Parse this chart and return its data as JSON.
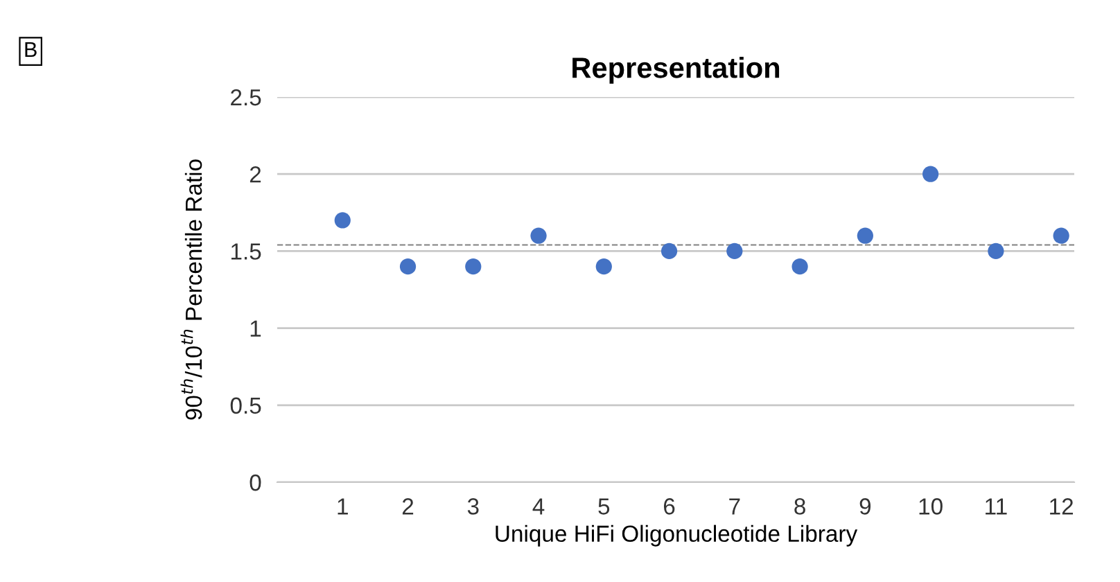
{
  "chart_data": {
    "type": "scatter",
    "title": "Representation",
    "xlabel": "Unique HiFi Oligonucleotide Library",
    "ylabel": "90$^{th}$/10$^{th}$ Percentile Ratio",
    "annotations": [
      "B"
    ],
    "x": [
      1,
      2,
      3,
      4,
      5,
      6,
      7,
      8,
      9,
      10,
      11,
      12
    ],
    "values": [
      1.7,
      1.4,
      1.4,
      1.6,
      1.4,
      1.5,
      1.5,
      1.4,
      1.6,
      2.0,
      1.5,
      1.6
    ],
    "color": "#4472c4",
    "marker": "circle",
    "xlim": [
      0,
      12.2
    ],
    "xticks": [
      1,
      2,
      3,
      4,
      5,
      6,
      7,
      8,
      9,
      10,
      11,
      12
    ],
    "ylim": [
      0,
      2.5
    ],
    "yticks": [
      0,
      0.5,
      1,
      1.5,
      2,
      2.5
    ],
    "grid": "y",
    "ref_lines": [
      {
        "axis": "y",
        "value": 1.54,
        "color": "#808080",
        "line_style": "dashed"
      }
    ]
  }
}
